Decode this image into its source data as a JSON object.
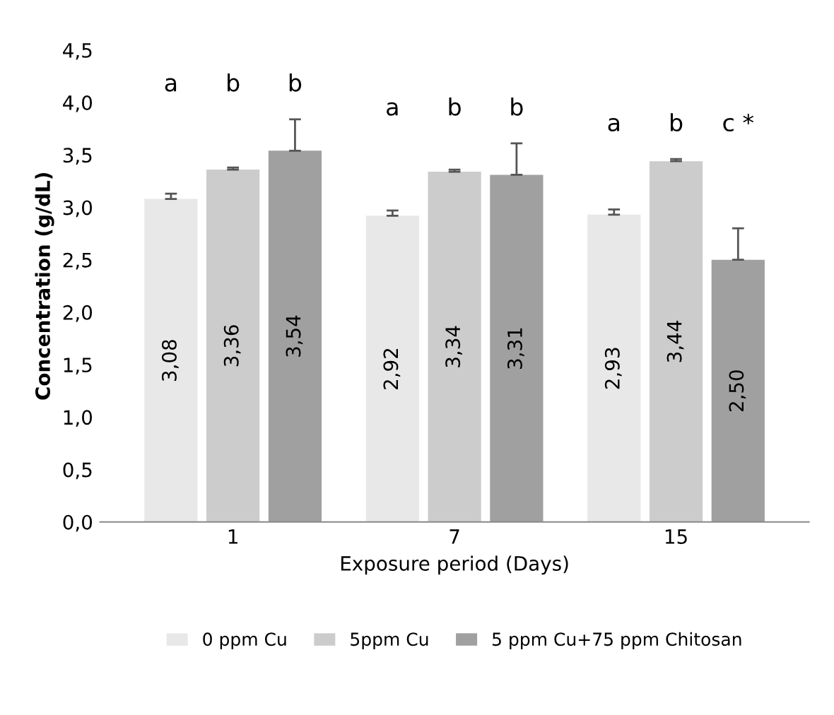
{
  "chart_data": {
    "type": "bar",
    "xlabel": "Exposure period (Days)",
    "ylabel": "Concentration (g/dL)",
    "categories": [
      "1",
      "7",
      "15"
    ],
    "series": [
      {
        "name": "0 ppm Cu",
        "color": "#e8e8e8",
        "values": [
          3.08,
          2.92,
          2.93
        ],
        "value_labels": [
          "3,08",
          "2,92",
          "2,93"
        ],
        "errors": [
          0.05,
          0.05,
          0.05
        ]
      },
      {
        "name": "5ppm Cu",
        "color": "#cccccc",
        "values": [
          3.36,
          3.34,
          3.44
        ],
        "value_labels": [
          "3,36",
          "3,34",
          "3,44"
        ],
        "errors": [
          0.02,
          0.02,
          0.02
        ]
      },
      {
        "name": "5 ppm Cu+75 ppm Chitosan",
        "color": "#a0a0a0",
        "values": [
          3.54,
          3.31,
          2.5
        ],
        "value_labels": [
          "3,54",
          "3,31",
          "2,50"
        ],
        "errors": [
          0.3,
          0.3,
          0.3
        ]
      }
    ],
    "annotations": [
      "a",
      "b",
      "b",
      "a",
      "b",
      "b",
      "a",
      "b",
      "c *"
    ],
    "ylim": [
      0,
      4.5
    ],
    "yticks": [
      {
        "value": 0,
        "label": "0,0"
      },
      {
        "value": 0.5,
        "label": "0,5"
      },
      {
        "value": 1,
        "label": "1,0"
      },
      {
        "value": 1.5,
        "label": "1,5"
      },
      {
        "value": 2,
        "label": "2,0"
      },
      {
        "value": 2.5,
        "label": "2,5"
      },
      {
        "value": 3,
        "label": "3,0"
      },
      {
        "value": 3.5,
        "label": "3,5"
      },
      {
        "value": 4,
        "label": "4,0"
      },
      {
        "value": 4.5,
        "label": "4,5"
      }
    ],
    "grid": false,
    "legend": "bottom"
  }
}
